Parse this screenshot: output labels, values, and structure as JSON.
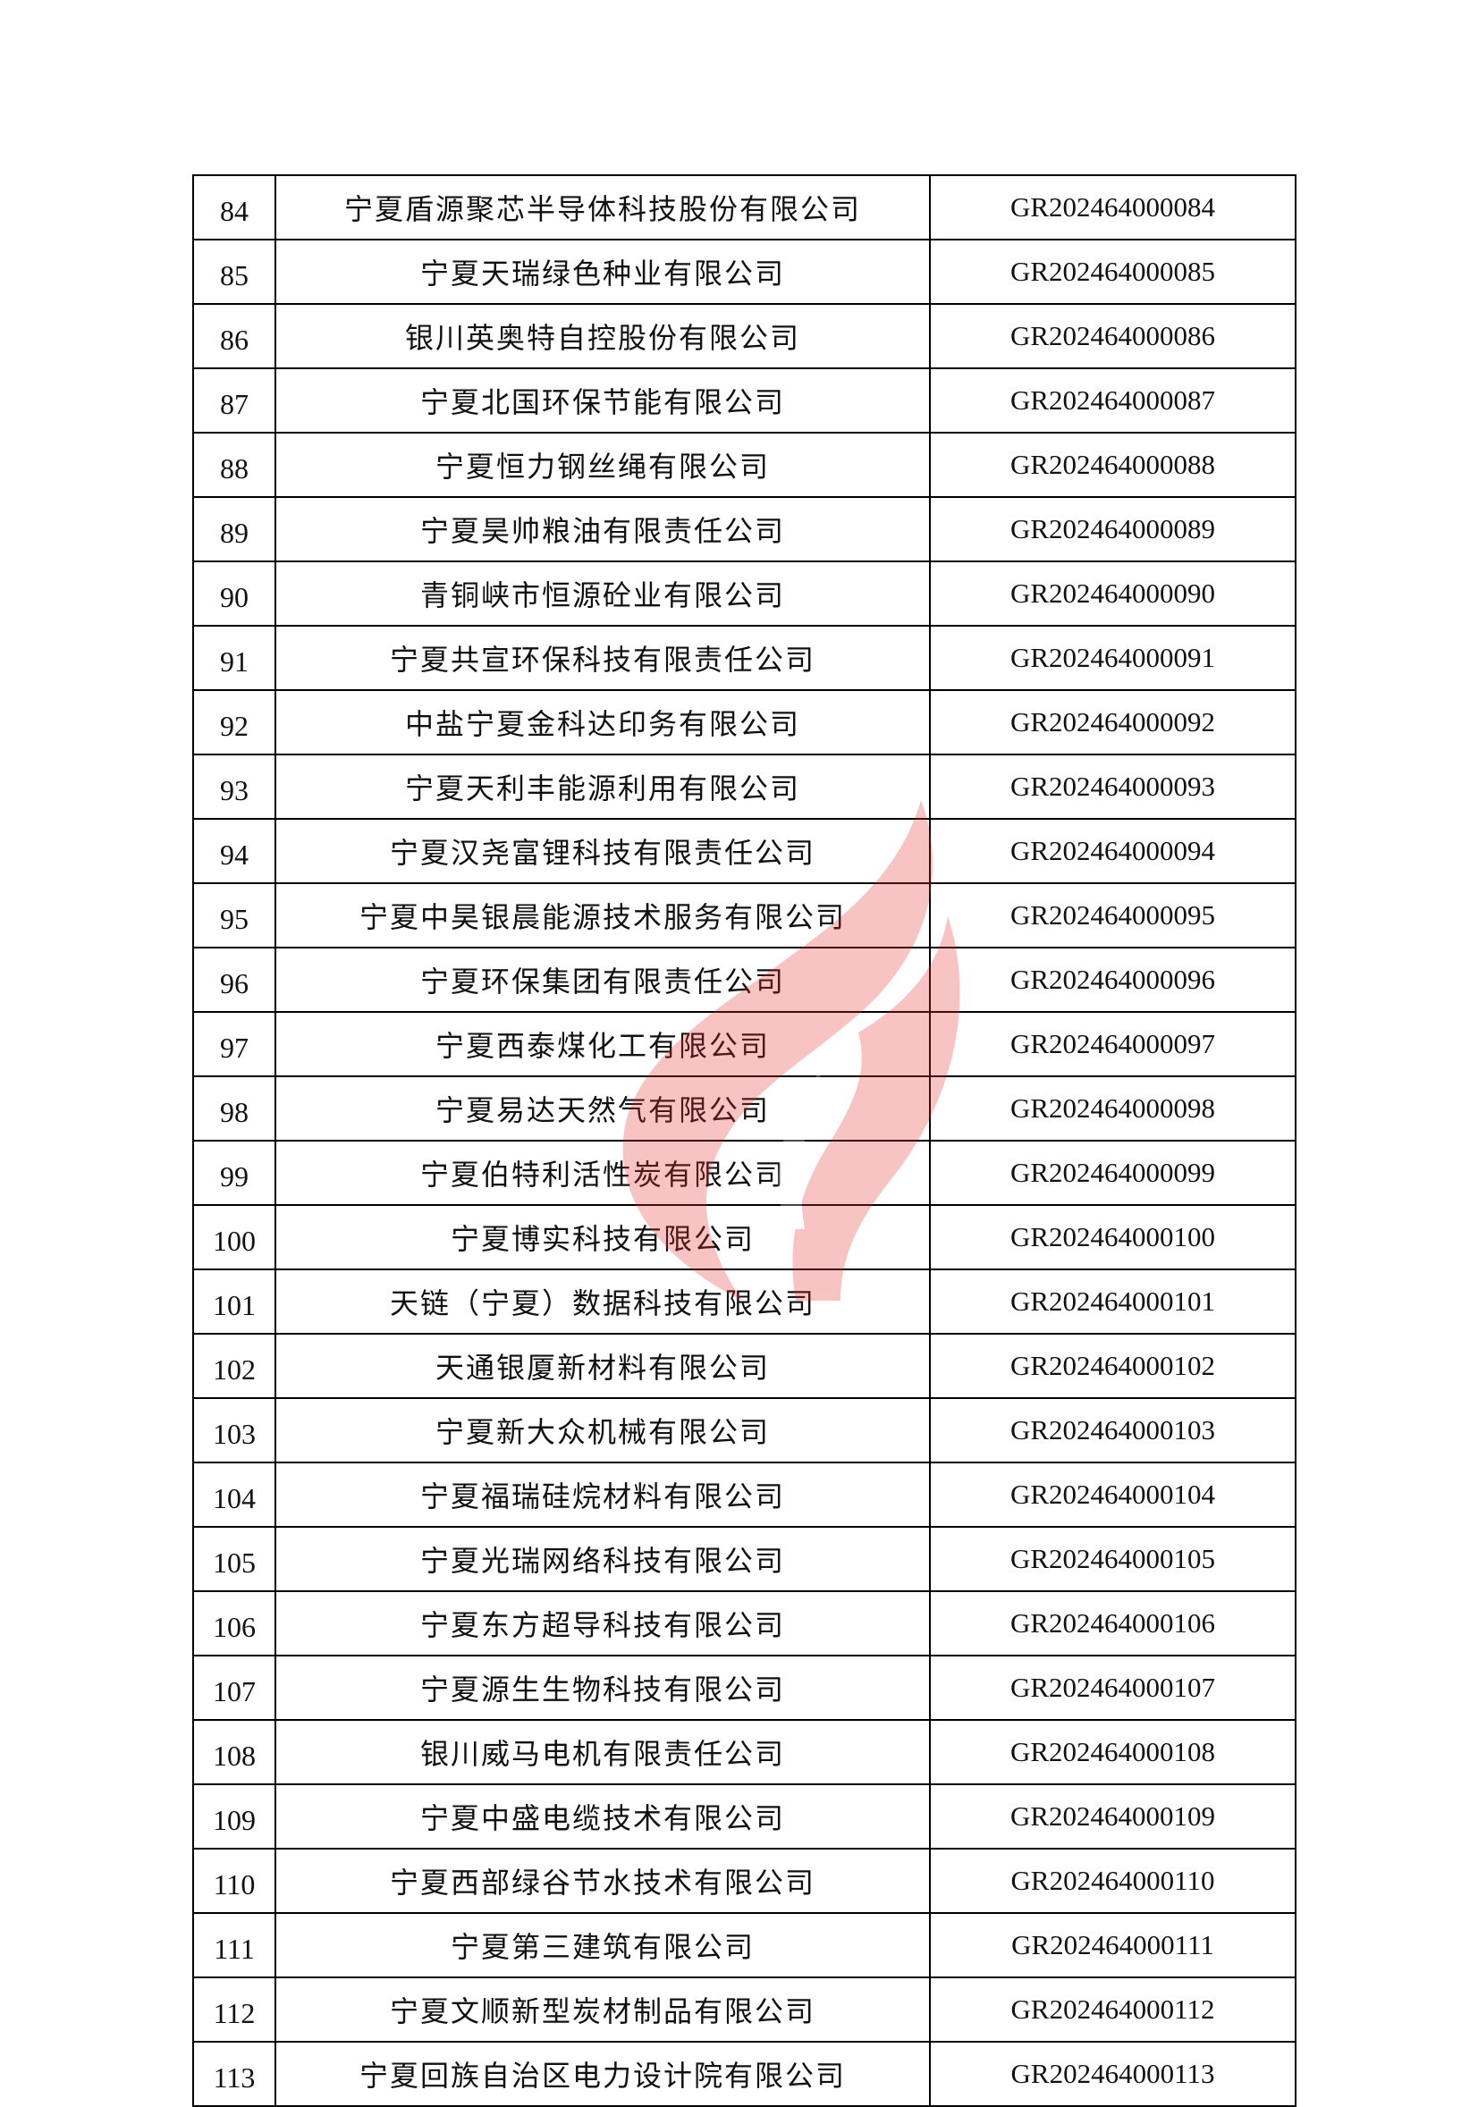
{
  "rows": [
    {
      "no": "84",
      "name": "宁夏盾源聚芯半导体科技股份有限公司",
      "code": "GR202464000084"
    },
    {
      "no": "85",
      "name": "宁夏天瑞绿色种业有限公司",
      "code": "GR202464000085"
    },
    {
      "no": "86",
      "name": "银川英奥特自控股份有限公司",
      "code": "GR202464000086"
    },
    {
      "no": "87",
      "name": "宁夏北国环保节能有限公司",
      "code": "GR202464000087"
    },
    {
      "no": "88",
      "name": "宁夏恒力钢丝绳有限公司",
      "code": "GR202464000088"
    },
    {
      "no": "89",
      "name": "宁夏昊帅粮油有限责任公司",
      "code": "GR202464000089"
    },
    {
      "no": "90",
      "name": "青铜峡市恒源砼业有限公司",
      "code": "GR202464000090"
    },
    {
      "no": "91",
      "name": "宁夏共宣环保科技有限责任公司",
      "code": "GR202464000091"
    },
    {
      "no": "92",
      "name": "中盐宁夏金科达印务有限公司",
      "code": "GR202464000092"
    },
    {
      "no": "93",
      "name": "宁夏天利丰能源利用有限公司",
      "code": "GR202464000093"
    },
    {
      "no": "94",
      "name": "宁夏汉尧富锂科技有限责任公司",
      "code": "GR202464000094"
    },
    {
      "no": "95",
      "name": "宁夏中昊银晨能源技术服务有限公司",
      "code": "GR202464000095"
    },
    {
      "no": "96",
      "name": "宁夏环保集团有限责任公司",
      "code": "GR202464000096"
    },
    {
      "no": "97",
      "name": "宁夏西泰煤化工有限公司",
      "code": "GR202464000097"
    },
    {
      "no": "98",
      "name": "宁夏易达天然气有限公司",
      "code": "GR202464000098"
    },
    {
      "no": "99",
      "name": "宁夏伯特利活性炭有限公司",
      "code": "GR202464000099"
    },
    {
      "no": "100",
      "name": "宁夏博实科技有限公司",
      "code": "GR202464000100"
    },
    {
      "no": "101",
      "name": "天链（宁夏）数据科技有限公司",
      "code": "GR202464000101"
    },
    {
      "no": "102",
      "name": "天通银厦新材料有限公司",
      "code": "GR202464000102"
    },
    {
      "no": "103",
      "name": "宁夏新大众机械有限公司",
      "code": "GR202464000103"
    },
    {
      "no": "104",
      "name": "宁夏福瑞硅烷材料有限公司",
      "code": "GR202464000104"
    },
    {
      "no": "105",
      "name": "宁夏光瑞网络科技有限公司",
      "code": "GR202464000105"
    },
    {
      "no": "106",
      "name": "宁夏东方超导科技有限公司",
      "code": "GR202464000106"
    },
    {
      "no": "107",
      "name": "宁夏源生生物科技有限公司",
      "code": "GR202464000107"
    },
    {
      "no": "108",
      "name": "银川威马电机有限责任公司",
      "code": "GR202464000108"
    },
    {
      "no": "109",
      "name": "宁夏中盛电缆技术有限公司",
      "code": "GR202464000109"
    },
    {
      "no": "110",
      "name": "宁夏西部绿谷节水技术有限公司",
      "code": "GR202464000110"
    },
    {
      "no": "111",
      "name": "宁夏第三建筑有限公司",
      "code": "GR202464000111"
    },
    {
      "no": "112",
      "name": "宁夏文顺新型炭材制品有限公司",
      "code": "GR202464000112"
    },
    {
      "no": "113",
      "name": "宁夏回族自治区电力设计院有限公司",
      "code": "GR202464000113"
    }
  ],
  "watermark": {
    "icon": "flame-logo-watermark",
    "color": "#e8302a"
  }
}
